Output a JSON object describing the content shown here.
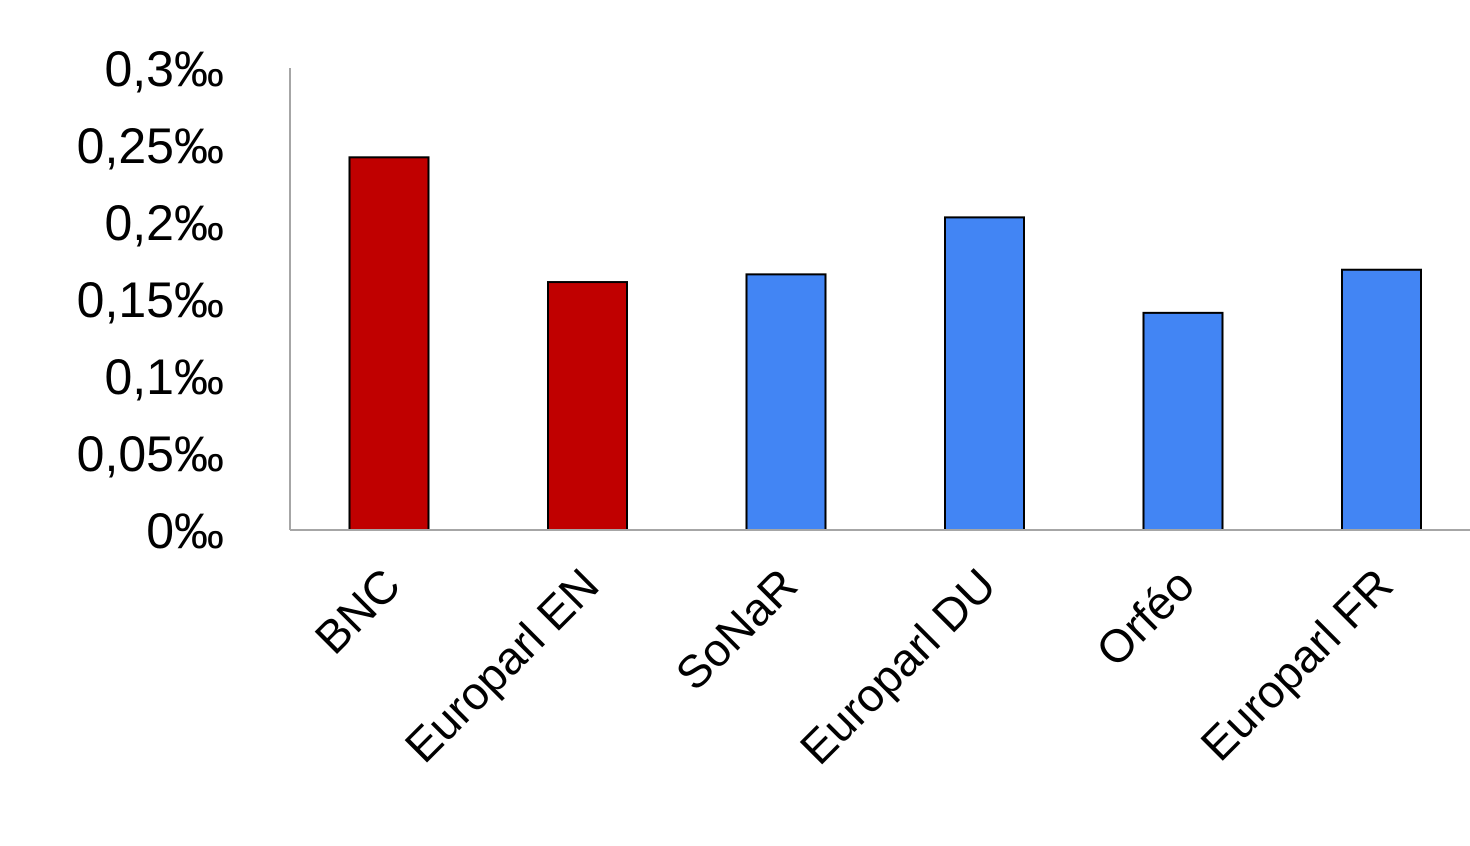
{
  "chart_data": {
    "type": "bar",
    "title": "",
    "xlabel": "",
    "ylabel": "",
    "categories": [
      "BNC",
      "Europarl EN",
      "SoNaR",
      "Europarl DU",
      "Orféo",
      "Europarl FR"
    ],
    "values": [
      0.242,
      0.161,
      0.166,
      0.203,
      0.141,
      0.169
    ],
    "bar_colors": [
      "#c00000",
      "#c00000",
      "#4285f4",
      "#4285f4",
      "#4285f4",
      "#4285f4"
    ],
    "ylim": [
      0,
      0.3
    ],
    "yticks": [
      0,
      0.05,
      0.1,
      0.15,
      0.2,
      0.25,
      0.3
    ],
    "ytick_labels": [
      "0‰",
      "0,05‰",
      "0,1‰",
      "0,15‰",
      "0,2‰",
      "0,25‰",
      "0,3‰"
    ],
    "grid": false,
    "legend": "none"
  }
}
